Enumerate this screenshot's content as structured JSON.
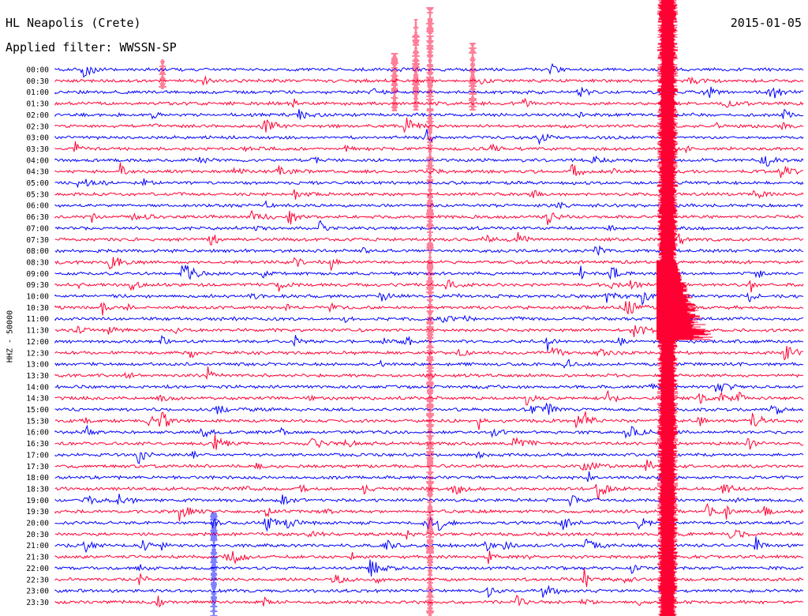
{
  "header": {
    "station": "HL Neapolis (Crete)",
    "date": "2015-01-05",
    "filter": "Applied filter: WWSSN-SP",
    "channel": "HHZ - 50000"
  },
  "chart_data": {
    "type": "helicorder",
    "title": "HL Neapolis (Crete)",
    "date": "2015-01-05",
    "filter": "WWSSN-SP",
    "ylabel": "HHZ - 50000",
    "row_interval_minutes": 30,
    "rows": [
      "00:00",
      "00:30",
      "01:00",
      "01:30",
      "02:00",
      "02:30",
      "03:00",
      "03:30",
      "04:00",
      "04:30",
      "05:00",
      "05:30",
      "06:00",
      "06:30",
      "07:00",
      "07:30",
      "08:00",
      "08:30",
      "09:00",
      "09:30",
      "10:00",
      "10:30",
      "11:00",
      "11:30",
      "12:00",
      "12:30",
      "13:00",
      "13:30",
      "14:00",
      "14:30",
      "15:00",
      "15:30",
      "16:00",
      "16:30",
      "17:00",
      "17:30",
      "18:00",
      "18:30",
      "19:00",
      "19:30",
      "20:00",
      "20:30",
      "21:00",
      "21:30",
      "22:00",
      "22:30",
      "23:00",
      "23:30"
    ],
    "trace_colors": [
      "#0000ff",
      "#ff0033"
    ],
    "grid": false
  }
}
